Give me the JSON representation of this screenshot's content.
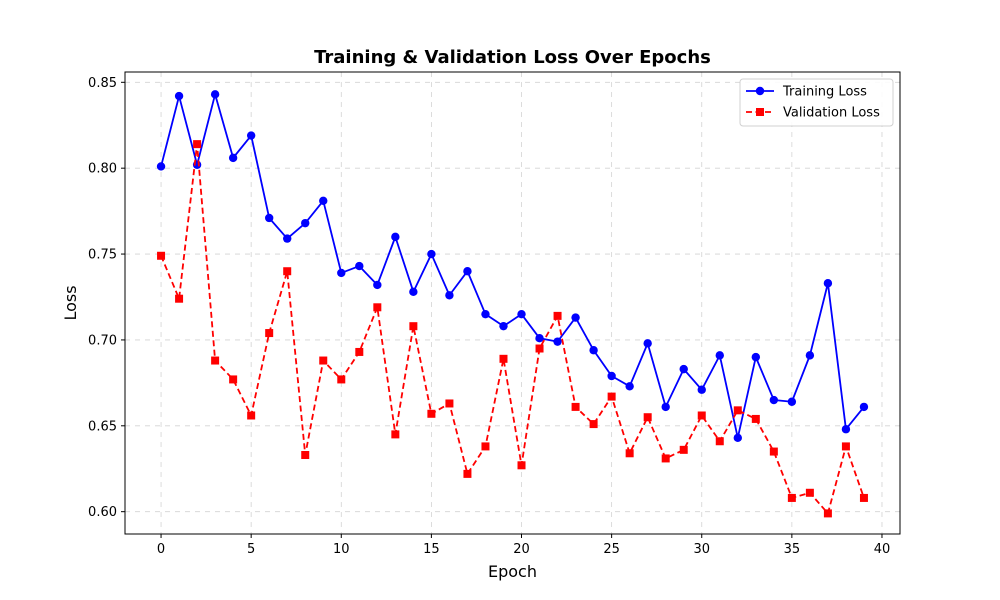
{
  "chart_data": {
    "type": "line",
    "title": "Training & Validation Loss Over Epochs",
    "xlabel": "Epoch",
    "ylabel": "Loss",
    "xlim": [
      -2,
      41
    ],
    "ylim": [
      0.587,
      0.856
    ],
    "xticks": [
      0,
      5,
      10,
      15,
      20,
      25,
      30,
      35,
      40
    ],
    "yticks": [
      0.6,
      0.65,
      0.7,
      0.75,
      0.8,
      0.85
    ],
    "ytick_labels": [
      "0.60",
      "0.65",
      "0.70",
      "0.75",
      "0.80",
      "0.85"
    ],
    "grid": true,
    "legend_position": "top-right",
    "x": [
      0,
      1,
      2,
      3,
      4,
      5,
      6,
      7,
      8,
      9,
      10,
      11,
      12,
      13,
      14,
      15,
      16,
      17,
      18,
      19,
      20,
      21,
      22,
      23,
      24,
      25,
      26,
      27,
      28,
      29,
      30,
      31,
      32,
      33,
      34,
      35,
      36,
      37,
      38,
      39
    ],
    "series": [
      {
        "name": "Training Loss",
        "color": "#0000ff",
        "line_style": "solid",
        "marker": "circle",
        "values": [
          0.801,
          0.842,
          0.802,
          0.843,
          0.806,
          0.819,
          0.771,
          0.759,
          0.768,
          0.781,
          0.739,
          0.743,
          0.732,
          0.76,
          0.728,
          0.75,
          0.726,
          0.74,
          0.715,
          0.708,
          0.715,
          0.701,
          0.699,
          0.713,
          0.694,
          0.679,
          0.673,
          0.698,
          0.661,
          0.683,
          0.671,
          0.691,
          0.643,
          0.69,
          0.665,
          0.664,
          0.691,
          0.733,
          0.648,
          0.661
        ]
      },
      {
        "name": "Validation Loss",
        "color": "#ff0000",
        "line_style": "dashed",
        "marker": "square",
        "values": [
          0.749,
          0.724,
          0.814,
          0.688,
          0.677,
          0.656,
          0.704,
          0.74,
          0.633,
          0.688,
          0.677,
          0.693,
          0.719,
          0.645,
          0.708,
          0.657,
          0.663,
          0.622,
          0.638,
          0.689,
          0.627,
          0.695,
          0.714,
          0.661,
          0.651,
          0.667,
          0.634,
          0.655,
          0.631,
          0.636,
          0.656,
          0.641,
          0.659,
          0.654,
          0.635,
          0.608,
          0.611,
          0.599,
          0.638,
          0.608
        ]
      }
    ]
  }
}
